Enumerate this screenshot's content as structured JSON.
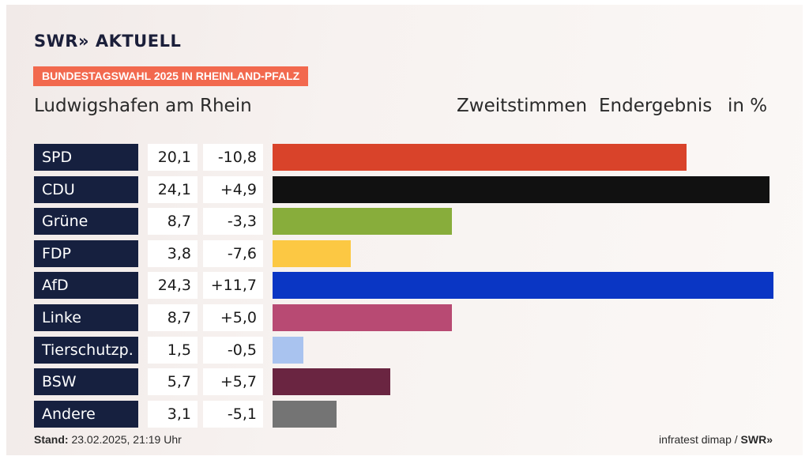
{
  "brand": {
    "logo": "SWR» AKTUELL",
    "footer_logo": "SWR»"
  },
  "banner": "BUNDESTAGSWAHL 2025 IN RHEINLAND-PFALZ",
  "place": "Ludwigshafen am Rhein",
  "headers": {
    "vote": "Zweitstimmen",
    "result": "Endergebnis",
    "unit": "in %"
  },
  "footer": {
    "stand_label": "Stand:",
    "stand_value": "23.02.2025, 21:19 Uhr",
    "source": "infratest dimap /"
  },
  "colors": {
    "banner": "#f2694e",
    "label_bg": "#16203f"
  },
  "chart_data": {
    "type": "bar",
    "orientation": "horizontal",
    "unit": "%",
    "xlim": [
      0,
      24.3
    ],
    "rows": [
      {
        "party": "SPD",
        "value": 20.1,
        "value_label": "20,1",
        "change": -10.8,
        "change_label": "-10,8",
        "color": "#d9432a"
      },
      {
        "party": "CDU",
        "value": 24.1,
        "value_label": "24,1",
        "change": 4.9,
        "change_label": "+4,9",
        "color": "#111111"
      },
      {
        "party": "Grüne",
        "value": 8.7,
        "value_label": "8,7",
        "change": -3.3,
        "change_label": "-3,3",
        "color": "#88ad3b"
      },
      {
        "party": "FDP",
        "value": 3.8,
        "value_label": "3,8",
        "change": -7.6,
        "change_label": "-7,6",
        "color": "#fcc843"
      },
      {
        "party": "AfD",
        "value": 24.3,
        "value_label": "24,3",
        "change": 11.7,
        "change_label": "+11,7",
        "color": "#0a36c4"
      },
      {
        "party": "Linke",
        "value": 8.7,
        "value_label": "8,7",
        "change": 5.0,
        "change_label": "+5,0",
        "color": "#b84a73"
      },
      {
        "party": "Tierschutzp.",
        "value": 1.5,
        "value_label": "1,5",
        "change": -0.5,
        "change_label": "-0,5",
        "color": "#a9c3ef"
      },
      {
        "party": "BSW",
        "value": 5.7,
        "value_label": "5,7",
        "change": 5.7,
        "change_label": "+5,7",
        "color": "#6a2541"
      },
      {
        "party": "Andere",
        "value": 3.1,
        "value_label": "3,1",
        "change": -5.1,
        "change_label": "-5,1",
        "color": "#747474"
      }
    ]
  }
}
